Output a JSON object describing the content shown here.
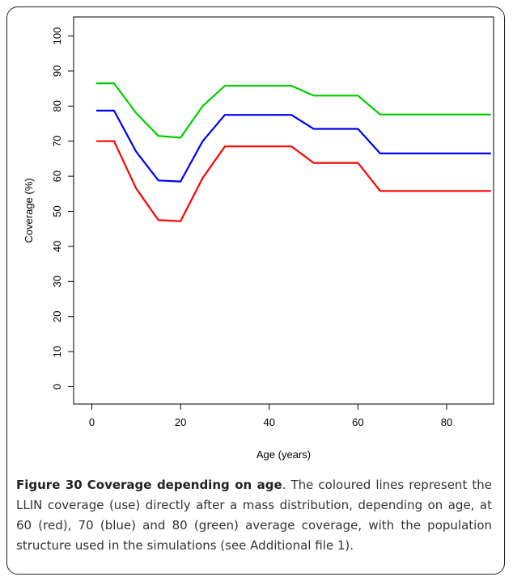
{
  "chart_data": {
    "type": "line",
    "xlabel": "Age (years)",
    "ylabel": "Coverage (%)",
    "xlim": [
      0,
      90
    ],
    "ylim": [
      0,
      100
    ],
    "x_ticks": [
      0,
      20,
      40,
      60,
      80
    ],
    "y_ticks": [
      0,
      10,
      20,
      30,
      40,
      50,
      60,
      70,
      80,
      90,
      100
    ],
    "grid": false,
    "legend": "none",
    "series": [
      {
        "color": "#00cc00",
        "x": [
          1,
          5,
          10,
          15,
          20,
          25,
          30,
          35,
          40,
          45,
          50,
          55,
          60,
          65,
          70,
          75,
          80,
          85,
          90
        ],
        "y": [
          86.5,
          86.5,
          78,
          71.5,
          71,
          80,
          85.8,
          85.8,
          85.8,
          85.8,
          83,
          83,
          83,
          77.6,
          77.6,
          77.6,
          77.6,
          77.6,
          77.6
        ]
      },
      {
        "color": "#0000ff",
        "x": [
          1,
          5,
          10,
          15,
          20,
          25,
          30,
          35,
          40,
          45,
          50,
          55,
          60,
          65,
          70,
          75,
          80,
          85,
          90
        ],
        "y": [
          78.7,
          78.7,
          67,
          58.8,
          58.5,
          70,
          77.5,
          77.5,
          77.5,
          77.5,
          73.5,
          73.5,
          73.5,
          66.5,
          66.5,
          66.5,
          66.5,
          66.5,
          66.5
        ]
      },
      {
        "color": "#ff0000",
        "x": [
          1,
          5,
          10,
          15,
          20,
          25,
          30,
          35,
          40,
          45,
          50,
          55,
          60,
          65,
          70,
          75,
          80,
          85,
          90
        ],
        "y": [
          70,
          70,
          56.5,
          47.5,
          47.2,
          59.5,
          68.5,
          68.5,
          68.5,
          68.5,
          63.8,
          63.8,
          63.8,
          55.8,
          55.8,
          55.8,
          55.8,
          55.8,
          55.8
        ]
      }
    ]
  },
  "caption": {
    "label": "Figure 30",
    "title": "Coverage depending on age",
    "text": ". The coloured lines represent the LLIN coverage (use) directly after a mass distribution, depending on age, at 60 (red), 70 (blue) and 80 (green) average coverage, with the population structure used in the simulations (see Additional file 1)."
  }
}
